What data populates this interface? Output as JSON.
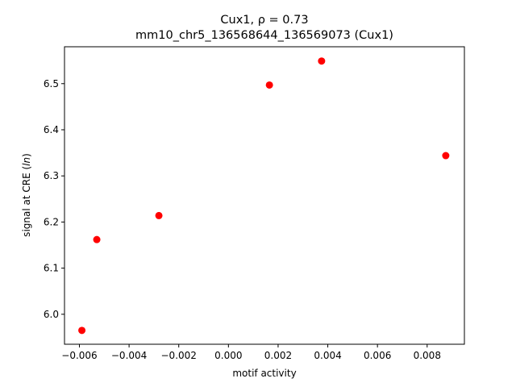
{
  "chart_data": {
    "type": "scatter",
    "title_line1": "Cux1, ρ = 0.73",
    "title_line2": "mm10_chr5_136568644_136569073 (Cux1)",
    "xlabel": "motif activity",
    "ylabel": "signal at CRE (ln)",
    "xlim": [
      -0.0066,
      0.0095
    ],
    "ylim": [
      5.935,
      6.58
    ],
    "x_ticks": [
      -0.006,
      -0.004,
      -0.002,
      0.0,
      0.002,
      0.004,
      0.006,
      0.008
    ],
    "x_tick_labels": [
      "−0.006",
      "−0.004",
      "−0.002",
      "0.000",
      "0.002",
      "0.004",
      "0.006",
      "0.008"
    ],
    "y_ticks": [
      6.0,
      6.1,
      6.2,
      6.3,
      6.4,
      6.5
    ],
    "y_tick_labels": [
      "6.0",
      "6.1",
      "6.2",
      "6.3",
      "6.4",
      "6.5"
    ],
    "grid": false,
    "marker_color": "#ff0000",
    "points": [
      {
        "x": -0.0059,
        "y": 5.965
      },
      {
        "x": -0.0053,
        "y": 6.162
      },
      {
        "x": -0.0028,
        "y": 6.214
      },
      {
        "x": 0.00165,
        "y": 6.497
      },
      {
        "x": 0.00375,
        "y": 6.549
      },
      {
        "x": 0.00875,
        "y": 6.344
      }
    ]
  }
}
